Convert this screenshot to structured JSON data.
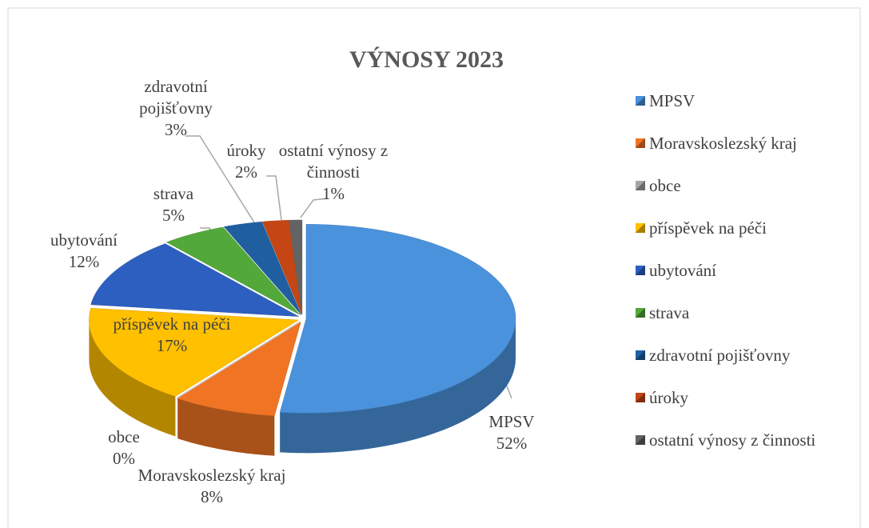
{
  "chart_data": {
    "type": "pie",
    "title": "VÝNOSY 2023",
    "categories": [
      "MPSV",
      "Moravskoslezský kraj",
      "obce",
      "příspěvek na péči",
      "ubytování",
      "strava",
      "zdravotní pojišťovny",
      "úroky",
      "ostatní výnosy z činnosti"
    ],
    "values": [
      52,
      8,
      0,
      17,
      12,
      5,
      3,
      2,
      1
    ],
    "value_labels": [
      "52%",
      "8%",
      "0%",
      "17%",
      "12%",
      "5%",
      "3%",
      "2%",
      "1%"
    ],
    "colors": [
      "#4a92dc",
      "#f07424",
      "#a5a5a5",
      "#ffc000",
      "#2d5fc0",
      "#53a83a",
      "#1f5fa0",
      "#c44614",
      "#636363"
    ],
    "legend": "right"
  }
}
